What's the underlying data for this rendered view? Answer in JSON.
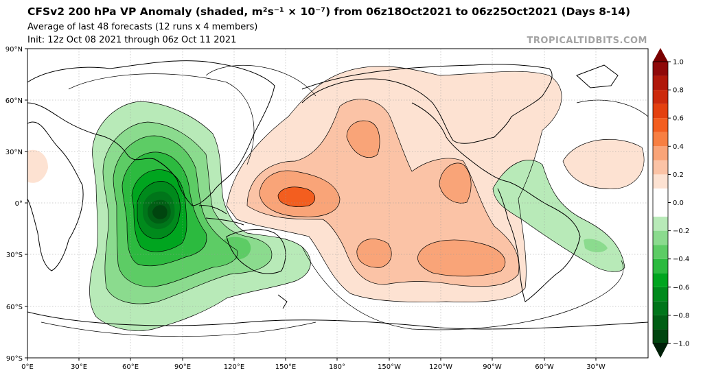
{
  "header": {
    "title": "CFSv2 200 hPa VP Anomaly (shaded, m²s⁻¹ × 10⁻⁷) from 06z18Oct2021 to 06z25Oct2021 (Days 8-14)",
    "subtitle_1": "Average of last 48 forecasts (12 runs x 4 members)",
    "subtitle_2": "Init: 12z Oct 08 2021 through 06z Oct 11 2021",
    "brand": "TROPICALTIDBITS.COM"
  },
  "map": {
    "lat_labels": [
      "90°N",
      "60°N",
      "30°N",
      "0°",
      "30°S",
      "60°S",
      "90°S"
    ],
    "lon_labels": [
      "0°E",
      "30°E",
      "60°E",
      "90°E",
      "120°E",
      "150°E",
      "180°",
      "150°W",
      "120°W",
      "90°W",
      "60°W",
      "30°W"
    ]
  },
  "colorbar": {
    "tick_labels": [
      "1.0",
      "0.8",
      "0.6",
      "0.4",
      "0.2",
      "0.0",
      "−0.2",
      "−0.4",
      "−0.6",
      "−0.8",
      "−1.0"
    ],
    "levels": [
      -1.0,
      -0.9,
      -0.8,
      -0.7,
      -0.6,
      -0.5,
      -0.4,
      -0.3,
      -0.2,
      -0.1,
      0.1,
      0.2,
      0.3,
      0.4,
      0.5,
      0.6,
      0.7,
      0.8,
      0.9,
      1.0
    ],
    "colors": [
      "#00330e",
      "#00450f",
      "#005e14",
      "#00751a",
      "#008a1c",
      "#00a51f",
      "#2cba3f",
      "#5dcc65",
      "#8bdb8e",
      "#b8eab8",
      "#ffffff",
      "#fde2d2",
      "#fbc3a6",
      "#f9a478",
      "#f77f42",
      "#f35e1f",
      "#e4410f",
      "#cc2a0c",
      "#b0180a",
      "#8f0909"
    ],
    "extend_top_color": "#7a0000",
    "extend_bottom_color": "#001f08"
  }
}
